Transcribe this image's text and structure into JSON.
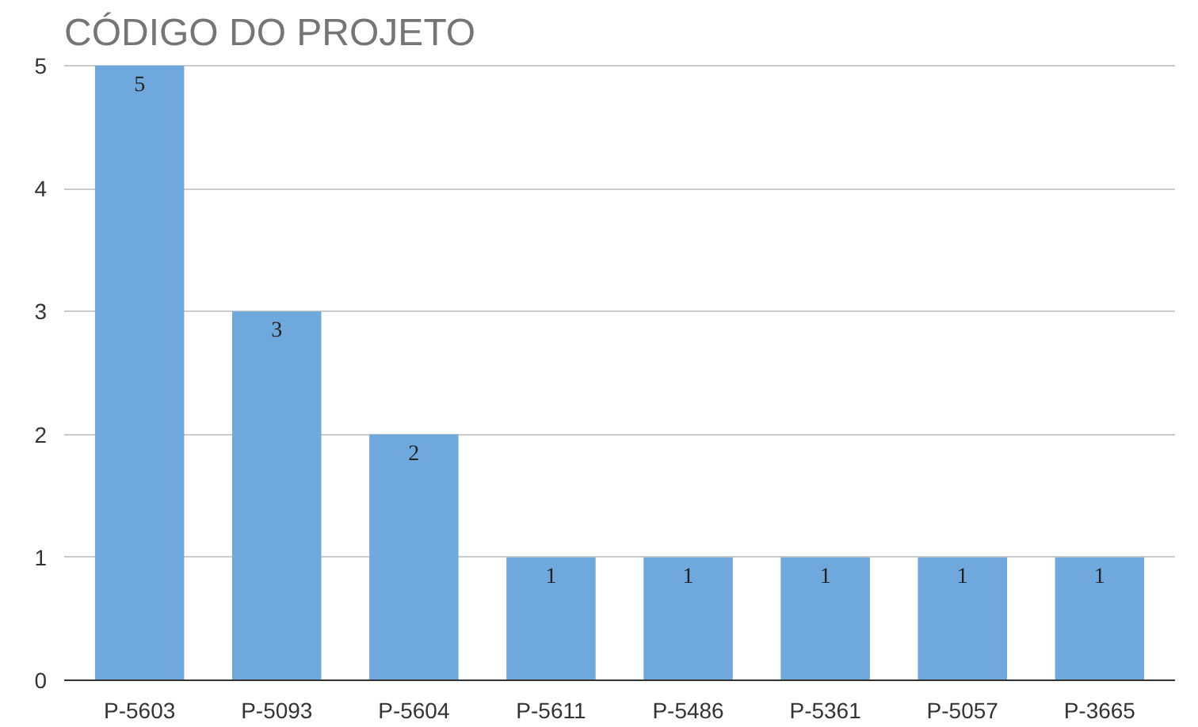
{
  "chart_data": {
    "type": "bar",
    "title": "CÓDIGO DO PROJETO",
    "categories": [
      "P-5603",
      "P-5093",
      "P-5604",
      "P-5611",
      "P-5486",
      "P-5361",
      "P-5057",
      "P-3665"
    ],
    "values": [
      5,
      3,
      2,
      1,
      1,
      1,
      1,
      1
    ],
    "color": "#6fa8dc",
    "ylim": [
      0,
      5
    ],
    "yticks": [
      0,
      1,
      2,
      3,
      4,
      5
    ],
    "grid": "y",
    "data_labels": true
  }
}
